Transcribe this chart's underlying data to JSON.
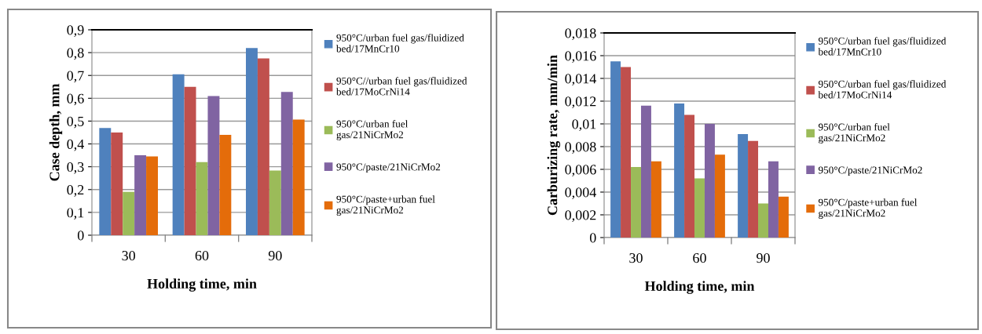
{
  "chart_data": [
    {
      "type": "bar",
      "xlabel": "Holding time, min",
      "ylabel": "Case depth, mm",
      "categories": [
        "30",
        "60",
        "90"
      ],
      "series": [
        {
          "name": "950°C/urban fuel gas/fluidized\nbed/17MnCr10",
          "color": "#4f81bd",
          "values": [
            0.47,
            0.705,
            0.82
          ]
        },
        {
          "name": "950°C//urban fuel gas/fluidized\nbed/17MoCrNi14",
          "color": "#c0504d",
          "values": [
            0.45,
            0.65,
            0.775
          ]
        },
        {
          "name": "950°C/urban fuel\ngas/21NiCrMo2",
          "color": "#9bbb59",
          "values": [
            0.19,
            0.32,
            0.283
          ]
        },
        {
          "name": "950°C/paste/21NiCrMo2",
          "color": "#8064a2",
          "values": [
            0.35,
            0.61,
            0.628
          ]
        },
        {
          "name": "950°C/paste+urban fuel\ngas/21NiCrMo2",
          "color": "#e46c0a",
          "values": [
            0.345,
            0.44,
            0.507
          ]
        }
      ],
      "ylim": [
        0,
        0.9
      ],
      "yticks": [
        0,
        {
          "value": 0.1,
          "label": "0,1"
        },
        {
          "value": 0.2,
          "label": "0,2"
        },
        {
          "value": 0.3,
          "label": "0,3"
        },
        {
          "value": 0.4,
          "label": "0,4"
        },
        {
          "value": 0.5,
          "label": "0,5"
        },
        {
          "value": 0.6,
          "label": "0,6"
        },
        {
          "value": 0.7,
          "label": "0,7"
        },
        {
          "value": 0.8,
          "label": "0,8"
        },
        {
          "value": 0.9,
          "label": "0,9"
        }
      ],
      "grid": "y",
      "legend": "right"
    },
    {
      "type": "bar",
      "xlabel": "Holding time, min",
      "ylabel": "Carburizing rate, mm/min",
      "categories": [
        "30",
        "60",
        "90"
      ],
      "series": [
        {
          "name": "950°C/urban fuel gas/fluidized\nbed/17MnCr10",
          "color": "#4f81bd",
          "values": [
            0.0155,
            0.0118,
            0.0091
          ]
        },
        {
          "name": "950°C/urban fuel gas/fluidized\nbed/17MoCrNi14",
          "color": "#c0504d",
          "values": [
            0.015,
            0.0108,
            0.0085
          ]
        },
        {
          "name": "950°C/urban fuel\ngas/21NiCrMo2",
          "color": "#9bbb59",
          "values": [
            0.0062,
            0.0052,
            0.003
          ]
        },
        {
          "name": "950°C/paste/21NiCrMo2",
          "color": "#8064a2",
          "values": [
            0.0116,
            0.01,
            0.0067
          ]
        },
        {
          "name": "950°C/paste+urban fuel\ngas/21NiCrMo2",
          "color": "#e46c0a",
          "values": [
            0.0067,
            0.0073,
            0.0036
          ]
        }
      ],
      "ylim": [
        0,
        0.018
      ],
      "yticks": [
        0,
        {
          "value": 0.002,
          "label": "0,002"
        },
        {
          "value": 0.004,
          "label": "0,004"
        },
        {
          "value": 0.006,
          "label": "0,006"
        },
        {
          "value": 0.008,
          "label": "0,008"
        },
        {
          "value": 0.01,
          "label": "0,01"
        },
        {
          "value": 0.012,
          "label": "0,012"
        },
        {
          "value": 0.014,
          "label": "0,014"
        },
        {
          "value": 0.016,
          "label": "0,016"
        },
        {
          "value": 0.018,
          "label": "0,018"
        }
      ],
      "grid": "y",
      "legend": "right"
    }
  ]
}
